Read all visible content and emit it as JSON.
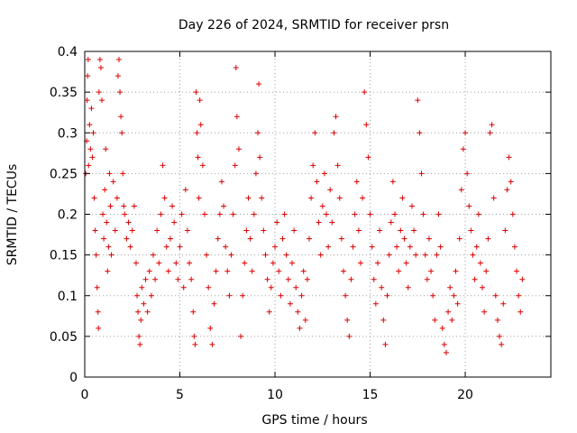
{
  "chart_data": {
    "type": "scatter",
    "title": "Day 226 of 2024, SRMTID for receiver prsn",
    "xlabel": "GPS time / hours",
    "ylabel": "SRMTID / TECUs",
    "xlim": [
      0,
      24.5
    ],
    "ylim": [
      0,
      0.4
    ],
    "xticks": [
      0,
      5,
      10,
      15,
      20
    ],
    "xtick_labels": [
      "0",
      "5",
      "10",
      "15",
      "20"
    ],
    "yticks": [
      0,
      0.05,
      0.1,
      0.15,
      0.2,
      0.25,
      0.3,
      0.35,
      0.4
    ],
    "ytick_labels": [
      "0",
      "0.05",
      "0.1",
      "0.15",
      "0.2",
      "0.25",
      "0.3",
      "0.35",
      "0.4"
    ],
    "grid": true,
    "marker": "+",
    "color": "#dd0000",
    "series": [
      {
        "name": "SRMTID",
        "points": [
          [
            0.05,
            0.25
          ],
          [
            0.1,
            0.29
          ],
          [
            0.12,
            0.34
          ],
          [
            0.15,
            0.37
          ],
          [
            0.18,
            0.39
          ],
          [
            0.2,
            0.26
          ],
          [
            0.25,
            0.31
          ],
          [
            0.3,
            0.28
          ],
          [
            0.35,
            0.33
          ],
          [
            0.4,
            0.27
          ],
          [
            0.45,
            0.3
          ],
          [
            0.5,
            0.22
          ],
          [
            0.55,
            0.18
          ],
          [
            0.6,
            0.15
          ],
          [
            0.65,
            0.11
          ],
          [
            0.7,
            0.08
          ],
          [
            0.72,
            0.06
          ],
          [
            0.75,
            0.35
          ],
          [
            0.8,
            0.39
          ],
          [
            0.85,
            0.38
          ],
          [
            0.9,
            0.34
          ],
          [
            0.95,
            0.2
          ],
          [
            1.0,
            0.17
          ],
          [
            1.05,
            0.23
          ],
          [
            1.1,
            0.28
          ],
          [
            1.15,
            0.19
          ],
          [
            1.2,
            0.13
          ],
          [
            1.25,
            0.16
          ],
          [
            1.3,
            0.25
          ],
          [
            1.35,
            0.21
          ],
          [
            1.4,
            0.15
          ],
          [
            1.5,
            0.24
          ],
          [
            1.6,
            0.18
          ],
          [
            1.7,
            0.22
          ],
          [
            1.75,
            0.37
          ],
          [
            1.8,
            0.39
          ],
          [
            1.85,
            0.35
          ],
          [
            1.9,
            0.32
          ],
          [
            1.95,
            0.3
          ],
          [
            2.0,
            0.25
          ],
          [
            2.05,
            0.21
          ],
          [
            2.1,
            0.2
          ],
          [
            2.2,
            0.17
          ],
          [
            2.3,
            0.19
          ],
          [
            2.4,
            0.16
          ],
          [
            2.5,
            0.18
          ],
          [
            2.6,
            0.21
          ],
          [
            2.7,
            0.14
          ],
          [
            2.75,
            0.1
          ],
          [
            2.8,
            0.08
          ],
          [
            2.85,
            0.05
          ],
          [
            2.9,
            0.04
          ],
          [
            2.95,
            0.07
          ],
          [
            3.0,
            0.11
          ],
          [
            3.1,
            0.09
          ],
          [
            3.2,
            0.12
          ],
          [
            3.3,
            0.08
          ],
          [
            3.4,
            0.13
          ],
          [
            3.5,
            0.1
          ],
          [
            3.6,
            0.15
          ],
          [
            3.7,
            0.12
          ],
          [
            3.8,
            0.18
          ],
          [
            3.9,
            0.14
          ],
          [
            4.0,
            0.2
          ],
          [
            4.1,
            0.26
          ],
          [
            4.2,
            0.22
          ],
          [
            4.3,
            0.16
          ],
          [
            4.4,
            0.13
          ],
          [
            4.5,
            0.17
          ],
          [
            4.6,
            0.21
          ],
          [
            4.7,
            0.19
          ],
          [
            4.8,
            0.14
          ],
          [
            4.9,
            0.12
          ],
          [
            5.0,
            0.16
          ],
          [
            5.1,
            0.2
          ],
          [
            5.2,
            0.11
          ],
          [
            5.3,
            0.23
          ],
          [
            5.4,
            0.18
          ],
          [
            5.5,
            0.14
          ],
          [
            5.6,
            0.12
          ],
          [
            5.7,
            0.08
          ],
          [
            5.75,
            0.05
          ],
          [
            5.8,
            0.04
          ],
          [
            5.85,
            0.35
          ],
          [
            5.9,
            0.3
          ],
          [
            5.95,
            0.27
          ],
          [
            6.0,
            0.22
          ],
          [
            6.05,
            0.34
          ],
          [
            6.1,
            0.31
          ],
          [
            6.2,
            0.26
          ],
          [
            6.3,
            0.2
          ],
          [
            6.4,
            0.15
          ],
          [
            6.5,
            0.11
          ],
          [
            6.6,
            0.06
          ],
          [
            6.7,
            0.04
          ],
          [
            6.8,
            0.09
          ],
          [
            6.9,
            0.13
          ],
          [
            7.0,
            0.17
          ],
          [
            7.1,
            0.2
          ],
          [
            7.2,
            0.24
          ],
          [
            7.3,
            0.21
          ],
          [
            7.4,
            0.16
          ],
          [
            7.5,
            0.13
          ],
          [
            7.6,
            0.1
          ],
          [
            7.7,
            0.15
          ],
          [
            7.8,
            0.2
          ],
          [
            7.9,
            0.26
          ],
          [
            7.95,
            0.38
          ],
          [
            8.0,
            0.32
          ],
          [
            8.1,
            0.28
          ],
          [
            8.2,
            0.05
          ],
          [
            8.3,
            0.1
          ],
          [
            8.4,
            0.14
          ],
          [
            8.5,
            0.18
          ],
          [
            8.6,
            0.22
          ],
          [
            8.7,
            0.17
          ],
          [
            8.8,
            0.13
          ],
          [
            8.9,
            0.2
          ],
          [
            9.0,
            0.25
          ],
          [
            9.1,
            0.3
          ],
          [
            9.15,
            0.36
          ],
          [
            9.2,
            0.27
          ],
          [
            9.3,
            0.22
          ],
          [
            9.4,
            0.18
          ],
          [
            9.5,
            0.15
          ],
          [
            9.6,
            0.12
          ],
          [
            9.7,
            0.08
          ],
          [
            9.8,
            0.11
          ],
          [
            9.9,
            0.14
          ],
          [
            10.0,
            0.16
          ],
          [
            10.1,
            0.19
          ],
          [
            10.2,
            0.13
          ],
          [
            10.3,
            0.1
          ],
          [
            10.4,
            0.17
          ],
          [
            10.5,
            0.2
          ],
          [
            10.6,
            0.15
          ],
          [
            10.7,
            0.12
          ],
          [
            10.8,
            0.09
          ],
          [
            10.9,
            0.14
          ],
          [
            11.0,
            0.18
          ],
          [
            11.1,
            0.11
          ],
          [
            11.2,
            0.08
          ],
          [
            11.3,
            0.06
          ],
          [
            11.4,
            0.1
          ],
          [
            11.5,
            0.13
          ],
          [
            11.6,
            0.07
          ],
          [
            11.7,
            0.12
          ],
          [
            11.8,
            0.17
          ],
          [
            11.9,
            0.22
          ],
          [
            12.0,
            0.26
          ],
          [
            12.1,
            0.3
          ],
          [
            12.2,
            0.24
          ],
          [
            12.3,
            0.19
          ],
          [
            12.4,
            0.15
          ],
          [
            12.5,
            0.21
          ],
          [
            12.6,
            0.25
          ],
          [
            12.7,
            0.2
          ],
          [
            12.8,
            0.16
          ],
          [
            12.9,
            0.23
          ],
          [
            13.0,
            0.19
          ],
          [
            13.1,
            0.3
          ],
          [
            13.2,
            0.32
          ],
          [
            13.3,
            0.26
          ],
          [
            13.4,
            0.22
          ],
          [
            13.5,
            0.17
          ],
          [
            13.6,
            0.13
          ],
          [
            13.7,
            0.1
          ],
          [
            13.8,
            0.07
          ],
          [
            13.9,
            0.05
          ],
          [
            14.0,
            0.12
          ],
          [
            14.1,
            0.16
          ],
          [
            14.2,
            0.2
          ],
          [
            14.3,
            0.24
          ],
          [
            14.4,
            0.18
          ],
          [
            14.5,
            0.14
          ],
          [
            14.6,
            0.22
          ],
          [
            14.7,
            0.35
          ],
          [
            14.8,
            0.31
          ],
          [
            14.9,
            0.27
          ],
          [
            15.0,
            0.2
          ],
          [
            15.1,
            0.16
          ],
          [
            15.2,
            0.12
          ],
          [
            15.3,
            0.09
          ],
          [
            15.4,
            0.14
          ],
          [
            15.5,
            0.18
          ],
          [
            15.6,
            0.11
          ],
          [
            15.7,
            0.07
          ],
          [
            15.8,
            0.04
          ],
          [
            15.9,
            0.1
          ],
          [
            16.0,
            0.15
          ],
          [
            16.1,
            0.19
          ],
          [
            16.2,
            0.24
          ],
          [
            16.3,
            0.2
          ],
          [
            16.4,
            0.16
          ],
          [
            16.5,
            0.13
          ],
          [
            16.6,
            0.18
          ],
          [
            16.7,
            0.22
          ],
          [
            16.8,
            0.17
          ],
          [
            16.9,
            0.14
          ],
          [
            17.0,
            0.11
          ],
          [
            17.1,
            0.16
          ],
          [
            17.2,
            0.21
          ],
          [
            17.3,
            0.18
          ],
          [
            17.4,
            0.15
          ],
          [
            17.5,
            0.34
          ],
          [
            17.6,
            0.3
          ],
          [
            17.7,
            0.25
          ],
          [
            17.8,
            0.2
          ],
          [
            17.9,
            0.15
          ],
          [
            18.0,
            0.12
          ],
          [
            18.1,
            0.17
          ],
          [
            18.2,
            0.13
          ],
          [
            18.3,
            0.1
          ],
          [
            18.4,
            0.07
          ],
          [
            18.5,
            0.15
          ],
          [
            18.6,
            0.2
          ],
          [
            18.7,
            0.16
          ],
          [
            18.8,
            0.06
          ],
          [
            18.9,
            0.04
          ],
          [
            19.0,
            0.03
          ],
          [
            19.1,
            0.08
          ],
          [
            19.2,
            0.11
          ],
          [
            19.3,
            0.07
          ],
          [
            19.4,
            0.1
          ],
          [
            19.5,
            0.13
          ],
          [
            19.6,
            0.09
          ],
          [
            19.7,
            0.17
          ],
          [
            19.8,
            0.23
          ],
          [
            19.9,
            0.28
          ],
          [
            20.0,
            0.3
          ],
          [
            20.1,
            0.25
          ],
          [
            20.2,
            0.21
          ],
          [
            20.3,
            0.18
          ],
          [
            20.4,
            0.15
          ],
          [
            20.5,
            0.12
          ],
          [
            20.6,
            0.16
          ],
          [
            20.7,
            0.2
          ],
          [
            20.8,
            0.14
          ],
          [
            20.9,
            0.11
          ],
          [
            21.0,
            0.08
          ],
          [
            21.1,
            0.13
          ],
          [
            21.2,
            0.17
          ],
          [
            21.3,
            0.3
          ],
          [
            21.4,
            0.31
          ],
          [
            21.5,
            0.22
          ],
          [
            21.6,
            0.1
          ],
          [
            21.7,
            0.07
          ],
          [
            21.8,
            0.05
          ],
          [
            21.9,
            0.04
          ],
          [
            22.0,
            0.09
          ],
          [
            22.1,
            0.18
          ],
          [
            22.2,
            0.23
          ],
          [
            22.3,
            0.27
          ],
          [
            22.4,
            0.24
          ],
          [
            22.5,
            0.2
          ],
          [
            22.6,
            0.16
          ],
          [
            22.7,
            0.13
          ],
          [
            22.8,
            0.1
          ],
          [
            22.9,
            0.08
          ],
          [
            23.0,
            0.12
          ]
        ]
      }
    ]
  }
}
